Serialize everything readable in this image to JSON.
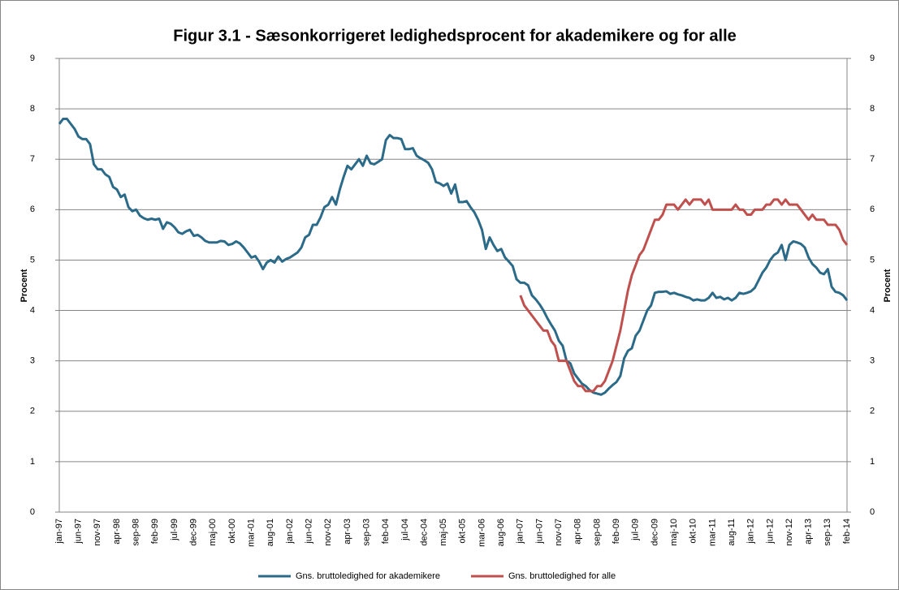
{
  "chart_data": {
    "type": "line",
    "title": "Figur 3.1 - Sæsonkorrigeret ledighedsprocent for akademikere og for alle",
    "ylabel": "Procent",
    "y2label": "Procent",
    "ylim": [
      0,
      9
    ],
    "yticks": [
      0,
      1,
      2,
      3,
      4,
      5,
      6,
      7,
      8,
      9
    ],
    "y2lim": [
      0,
      9
    ],
    "y2ticks": [
      0,
      1,
      2,
      3,
      4,
      5,
      6,
      7,
      8,
      9
    ],
    "grid": true,
    "legend": "bottom",
    "categories": [
      "jan-97",
      null,
      null,
      null,
      null,
      "jun-97",
      null,
      null,
      null,
      null,
      "nov-97",
      null,
      null,
      null,
      null,
      "apr-98",
      null,
      null,
      null,
      null,
      "sep-98",
      null,
      null,
      null,
      null,
      "feb-99",
      null,
      null,
      null,
      null,
      "jul-99",
      null,
      null,
      null,
      null,
      "dec-99",
      null,
      null,
      null,
      null,
      "maj-00",
      null,
      null,
      null,
      null,
      "okt-00",
      null,
      null,
      null,
      null,
      "mar-01",
      null,
      null,
      null,
      null,
      "aug-01",
      null,
      null,
      null,
      null,
      "jan-02",
      null,
      null,
      null,
      null,
      "jun-02",
      null,
      null,
      null,
      null,
      "nov-02",
      null,
      null,
      null,
      null,
      "apr-03",
      null,
      null,
      null,
      null,
      "sep-03",
      null,
      null,
      null,
      null,
      "feb-04",
      null,
      null,
      null,
      null,
      "jul-04",
      null,
      null,
      null,
      null,
      "dec-04",
      null,
      null,
      null,
      null,
      "maj-05",
      null,
      null,
      null,
      null,
      "okt-05",
      null,
      null,
      null,
      null,
      "mar-06",
      null,
      null,
      null,
      null,
      "aug-06",
      null,
      null,
      null,
      null,
      "jan-07",
      null,
      null,
      null,
      null,
      "jun-07",
      null,
      null,
      null,
      null,
      "nov-07",
      null,
      null,
      null,
      null,
      "apr-08",
      null,
      null,
      null,
      null,
      "sep-08",
      null,
      null,
      null,
      null,
      "feb-09",
      null,
      null,
      null,
      null,
      "jul-09",
      null,
      null,
      null,
      null,
      "dec-09",
      null,
      null,
      null,
      null,
      "maj-10",
      null,
      null,
      null,
      null,
      "okt-10",
      null,
      null,
      null,
      null,
      "mar-11",
      null,
      null,
      null,
      null,
      "aug-11",
      null,
      null,
      null,
      null,
      "jan-12",
      null,
      null,
      null,
      null,
      "jun-12",
      null,
      null,
      null,
      null,
      "nov-12",
      null,
      null,
      null,
      null,
      "apr-13",
      null,
      null,
      null,
      null,
      "sep-13",
      null,
      null,
      null,
      null,
      "feb-14"
    ],
    "series": [
      {
        "name": "Gns. bruttoledighed for akademikere",
        "color": "#2b6a88",
        "values": [
          7.7,
          7.8,
          7.8,
          7.7,
          7.6,
          7.45,
          7.4,
          7.4,
          7.3,
          6.9,
          6.8,
          6.8,
          6.7,
          6.65,
          6.45,
          6.4,
          6.25,
          6.3,
          6.05,
          5.97,
          6.0,
          5.88,
          5.83,
          5.8,
          5.82,
          5.8,
          5.82,
          5.62,
          5.75,
          5.72,
          5.65,
          5.55,
          5.52,
          5.57,
          5.6,
          5.48,
          5.5,
          5.45,
          5.38,
          5.35,
          5.35,
          5.35,
          5.38,
          5.37,
          5.3,
          5.32,
          5.37,
          5.33,
          5.25,
          5.15,
          5.05,
          5.08,
          4.97,
          4.82,
          4.95,
          5.0,
          4.95,
          5.07,
          4.97,
          5.02,
          5.05,
          5.1,
          5.15,
          5.25,
          5.45,
          5.5,
          5.7,
          5.7,
          5.85,
          6.05,
          6.1,
          6.25,
          6.1,
          6.4,
          6.65,
          6.87,
          6.8,
          6.9,
          7.0,
          6.87,
          7.07,
          6.92,
          6.9,
          6.95,
          7.0,
          7.38,
          7.48,
          7.42,
          7.42,
          7.4,
          7.2,
          7.2,
          7.22,
          7.07,
          7.02,
          6.98,
          6.93,
          6.8,
          6.55,
          6.52,
          6.47,
          6.52,
          6.32,
          6.5,
          6.15,
          6.15,
          6.17,
          6.05,
          5.95,
          5.8,
          5.6,
          5.22,
          5.45,
          5.3,
          5.18,
          5.22,
          5.05,
          4.97,
          4.88,
          4.62,
          4.55,
          4.55,
          4.5,
          4.3,
          4.22,
          4.12,
          4.0,
          3.85,
          3.72,
          3.6,
          3.4,
          3.3,
          3.0,
          2.95,
          2.75,
          2.65,
          2.55,
          2.5,
          2.42,
          2.37,
          2.35,
          2.33,
          2.37,
          2.45,
          2.52,
          2.58,
          2.7,
          3.05,
          3.2,
          3.25,
          3.5,
          3.6,
          3.8,
          4.0,
          4.1,
          4.35,
          4.37,
          4.37,
          4.38,
          4.33,
          4.35,
          4.32,
          4.3,
          4.27,
          4.25,
          4.2,
          4.22,
          4.2,
          4.2,
          4.25,
          4.35,
          4.25,
          4.27,
          4.22,
          4.25,
          4.2,
          4.25,
          4.35,
          4.33,
          4.35,
          4.38,
          4.45,
          4.6,
          4.75,
          4.85,
          5.0,
          5.1,
          5.15,
          5.3,
          5.0,
          5.3,
          5.37,
          5.35,
          5.32,
          5.25,
          5.05,
          4.92,
          4.85,
          4.75,
          4.72,
          4.82,
          4.47,
          4.37,
          4.35,
          4.3,
          4.2
        ]
      },
      {
        "name": "Gns. bruttoledighed for alle",
        "color": "#c0504d",
        "values": [
          null,
          null,
          null,
          null,
          null,
          null,
          null,
          null,
          null,
          null,
          null,
          null,
          null,
          null,
          null,
          null,
          null,
          null,
          null,
          null,
          null,
          null,
          null,
          null,
          null,
          null,
          null,
          null,
          null,
          null,
          null,
          null,
          null,
          null,
          null,
          null,
          null,
          null,
          null,
          null,
          null,
          null,
          null,
          null,
          null,
          null,
          null,
          null,
          null,
          null,
          null,
          null,
          null,
          null,
          null,
          null,
          null,
          null,
          null,
          null,
          null,
          null,
          null,
          null,
          null,
          null,
          null,
          null,
          null,
          null,
          null,
          null,
          null,
          null,
          null,
          null,
          null,
          null,
          null,
          null,
          null,
          null,
          null,
          null,
          null,
          null,
          null,
          null,
          null,
          null,
          null,
          null,
          null,
          null,
          null,
          null,
          null,
          null,
          null,
          null,
          null,
          null,
          null,
          null,
          null,
          null,
          null,
          null,
          null,
          null,
          null,
          null,
          null,
          null,
          null,
          null,
          null,
          null,
          null,
          null,
          4.3,
          4.1,
          4.0,
          3.9,
          3.8,
          3.7,
          3.6,
          3.6,
          3.4,
          3.3,
          3.0,
          3.0,
          3.0,
          2.8,
          2.6,
          2.5,
          2.5,
          2.4,
          2.4,
          2.4,
          2.5,
          2.5,
          2.6,
          2.8,
          3.0,
          3.3,
          3.6,
          4.0,
          4.4,
          4.7,
          4.9,
          5.1,
          5.2,
          5.4,
          5.6,
          5.8,
          5.8,
          5.9,
          6.1,
          6.1,
          6.1,
          6.0,
          6.1,
          6.2,
          6.1,
          6.2,
          6.2,
          6.2,
          6.1,
          6.2,
          6.0,
          6.0,
          6.0,
          6.0,
          6.0,
          6.0,
          6.1,
          6.0,
          6.0,
          5.9,
          5.9,
          6.0,
          6.0,
          6.0,
          6.1,
          6.1,
          6.2,
          6.2,
          6.1,
          6.2,
          6.1,
          6.1,
          6.1,
          6.0,
          5.9,
          5.8,
          5.9,
          5.8,
          5.8,
          5.8,
          5.7,
          5.7,
          5.7,
          5.6,
          5.4,
          5.3
        ]
      }
    ]
  }
}
